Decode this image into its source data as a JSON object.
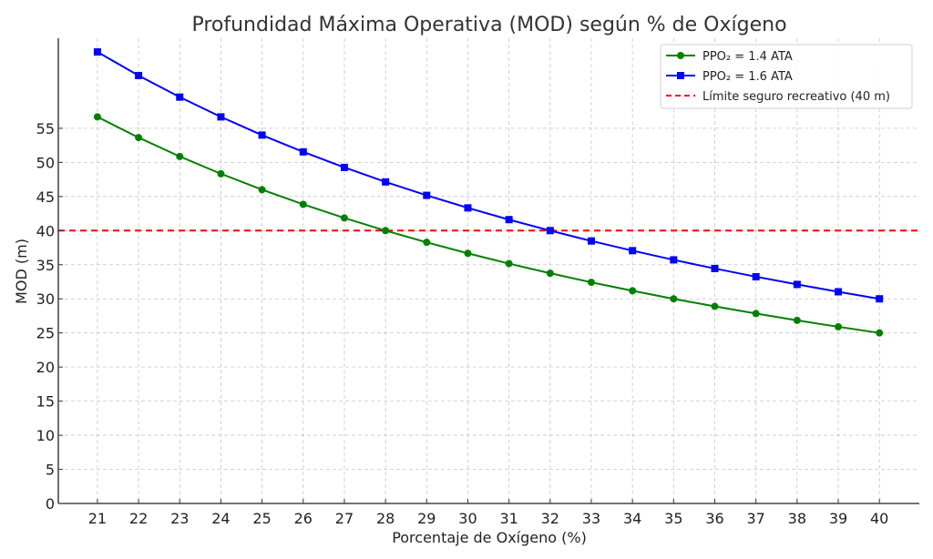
{
  "chart_data": {
    "type": "line",
    "title": "Profundidad Máxima Operativa (MOD) según % de Oxígeno",
    "xlabel": "Porcentaje de Oxígeno (%)",
    "ylabel": "MOD (m)",
    "xlim": [
      20.05,
      40.97
    ],
    "ylim": [
      0,
      68.2
    ],
    "x_ticks": [
      21,
      22,
      23,
      24,
      25,
      26,
      27,
      28,
      29,
      30,
      31,
      32,
      33,
      34,
      35,
      36,
      37,
      38,
      39,
      40
    ],
    "y_ticks": [
      0,
      5,
      10,
      15,
      20,
      25,
      30,
      35,
      40,
      45,
      50,
      55
    ],
    "grid": true,
    "legend_position": "top-right",
    "x": [
      21,
      22,
      23,
      24,
      25,
      26,
      27,
      28,
      29,
      30,
      31,
      32,
      33,
      34,
      35,
      36,
      37,
      38,
      39,
      40
    ],
    "series": [
      {
        "name": "PPO₂ = 1.4 ATA",
        "color": "#008000",
        "marker": "circle",
        "values": [
          56.67,
          53.64,
          50.87,
          48.33,
          46.0,
          43.85,
          41.85,
          40.0,
          38.28,
          36.67,
          35.16,
          33.75,
          32.42,
          31.18,
          30.0,
          28.89,
          27.84,
          26.84,
          25.9,
          25.0
        ]
      },
      {
        "name": "PPO₂ = 1.6 ATA",
        "color": "#0000ff",
        "marker": "square",
        "values": [
          66.19,
          62.73,
          59.57,
          56.67,
          54.0,
          51.54,
          49.26,
          47.14,
          45.17,
          43.33,
          41.61,
          40.0,
          38.48,
          37.06,
          35.71,
          34.44,
          33.24,
          32.11,
          31.03,
          30.0
        ]
      }
    ],
    "reference_line": {
      "name": "Límite seguro recreativo (40 m)",
      "y": 40,
      "color": "#ff0000",
      "style": "dashed"
    }
  }
}
